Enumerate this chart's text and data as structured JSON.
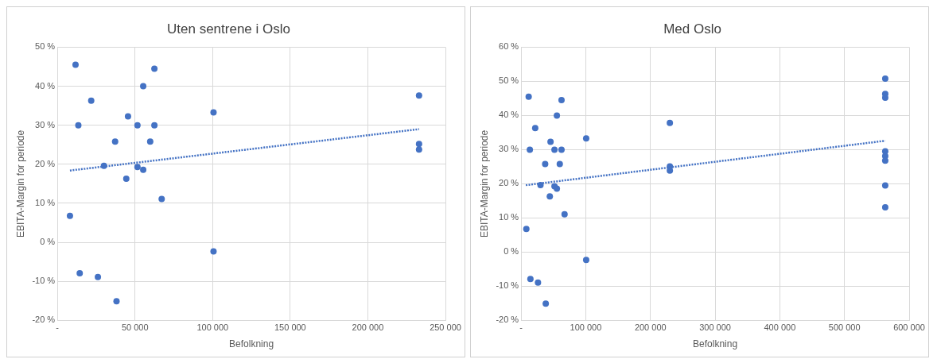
{
  "chart_data": [
    {
      "type": "scatter",
      "title": "Uten sentrene i Oslo",
      "xlabel": "Befolkning",
      "ylabel": "EBITA-Margin for periode",
      "xlim": [
        0,
        250000
      ],
      "xticks": [
        {
          "value": 0,
          "label": "-"
        },
        {
          "value": 50000,
          "label": "50 000"
        },
        {
          "value": 100000,
          "label": "100 000"
        },
        {
          "value": 150000,
          "label": "150 000"
        },
        {
          "value": 200000,
          "label": "200 000"
        },
        {
          "value": 250000,
          "label": "250 000"
        }
      ],
      "ylim": [
        -20,
        50
      ],
      "yticks": [
        {
          "value": -20,
          "label": "-20 %"
        },
        {
          "value": -10,
          "label": "-10 %"
        },
        {
          "value": 0,
          "label": "0 %"
        },
        {
          "value": 10,
          "label": "10 %"
        },
        {
          "value": 20,
          "label": "20 %"
        },
        {
          "value": 30,
          "label": "30 %"
        },
        {
          "value": 40,
          "label": "40 %"
        },
        {
          "value": 50,
          "label": "50 %"
        }
      ],
      "grid": true,
      "legend": false,
      "series": [
        {
          "type": "scatter",
          "marker": "circle",
          "color": "#4472c4",
          "x": [
            11700,
            62500,
            55300,
            21800,
            45500,
            13500,
            51600,
            62500,
            100600,
            37200,
            59800,
            30000,
            51600,
            55300,
            44400,
            67200,
            8100,
            100600,
            14400,
            26100,
            38100,
            233000,
            233000,
            233000
          ],
          "values": [
            45.5,
            44.5,
            40,
            36.3,
            32.3,
            30,
            30,
            30,
            33.3,
            25.8,
            25.8,
            19.6,
            19.3,
            18.6,
            16.3,
            11.1,
            6.8,
            -2.3,
            -7.9,
            -8.9,
            -15.1,
            37.6,
            25.2,
            23.8
          ]
        },
        {
          "type": "line",
          "marker": "none",
          "line_style": "dotted",
          "color": "#4472c4",
          "x": [
            8100,
            233000
          ],
          "values": [
            18.4,
            29
          ]
        }
      ]
    },
    {
      "type": "scatter",
      "title": "Med Oslo",
      "xlabel": "Befolkning",
      "ylabel": "EBITA-Margin for periode",
      "xlim": [
        0,
        600000
      ],
      "xticks": [
        {
          "value": 0,
          "label": "-"
        },
        {
          "value": 100000,
          "label": "100 000"
        },
        {
          "value": 200000,
          "label": "200 000"
        },
        {
          "value": 300000,
          "label": "300 000"
        },
        {
          "value": 400000,
          "label": "400 000"
        },
        {
          "value": 500000,
          "label": "500 000"
        },
        {
          "value": 600000,
          "label": "600 000"
        }
      ],
      "ylim": [
        -20,
        60
      ],
      "yticks": [
        {
          "value": -20,
          "label": "-20 %"
        },
        {
          "value": -10,
          "label": "-10 %"
        },
        {
          "value": 0,
          "label": "0 %"
        },
        {
          "value": 10,
          "label": "10 %"
        },
        {
          "value": 20,
          "label": "20 %"
        },
        {
          "value": 30,
          "label": "30 %"
        },
        {
          "value": 40,
          "label": "40 %"
        },
        {
          "value": 50,
          "label": "50 %"
        },
        {
          "value": 60,
          "label": "60 %"
        }
      ],
      "grid": true,
      "legend": false,
      "series": [
        {
          "type": "scatter",
          "marker": "circle",
          "color": "#4472c4",
          "x": [
            11700,
            62500,
            55300,
            21800,
            45500,
            13500,
            51600,
            62500,
            100600,
            37200,
            59800,
            30000,
            51600,
            55300,
            44400,
            67200,
            8100,
            100600,
            14400,
            26100,
            38100,
            230000,
            230000,
            230000,
            563000,
            563000,
            563000,
            563000,
            563000,
            563000,
            563000,
            563000
          ],
          "values": [
            45.5,
            44.5,
            40,
            36.3,
            32.3,
            30,
            30,
            30,
            33.3,
            25.8,
            25.8,
            19.6,
            19.3,
            18.6,
            16.3,
            11.1,
            6.8,
            -2.3,
            -7.9,
            -8.9,
            -15.1,
            37.8,
            25.1,
            23.9,
            50.8,
            46.3,
            45.2,
            29.5,
            28.1,
            26.8,
            19.5,
            13.1
          ]
        },
        {
          "type": "line",
          "marker": "none",
          "line_style": "dotted",
          "color": "#4472c4",
          "x": [
            7300,
            563000
          ],
          "values": [
            19.6,
            32.6
          ]
        }
      ]
    }
  ]
}
